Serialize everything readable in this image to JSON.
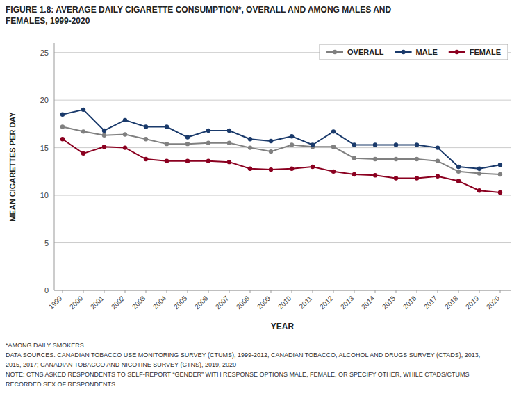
{
  "chart_data": {
    "type": "line",
    "title": "FIGURE 1.8: AVERAGE DAILY CIGARETTE CONSUMPTION*, OVERALL AND AMONG MALES AND",
    "subtitle": "FEMALES, 1999-2020",
    "x_label": "YEAR",
    "y_label": "MEAN CIGARETTES PER DAY",
    "x": [
      1999,
      2000,
      2001,
      2002,
      2003,
      2004,
      2005,
      2006,
      2007,
      2008,
      2009,
      2010,
      2011,
      2012,
      2013,
      2014,
      2015,
      2016,
      2017,
      2018,
      2019,
      2020
    ],
    "series": [
      {
        "name": "OVERALL",
        "color": "#808080",
        "marker": "circle",
        "line_style": "solid",
        "values": [
          17.2,
          16.7,
          16.3,
          16.4,
          15.9,
          15.4,
          15.4,
          15.5,
          15.5,
          15.0,
          14.6,
          15.3,
          15.1,
          15.1,
          13.9,
          13.8,
          13.8,
          13.8,
          13.6,
          12.5,
          12.3,
          12.2
        ]
      },
      {
        "name": "MALE",
        "color": "#1a3a6b",
        "marker": "circle",
        "line_style": "solid",
        "values": [
          18.5,
          19.0,
          16.8,
          17.9,
          17.2,
          17.2,
          16.1,
          16.8,
          16.8,
          15.9,
          15.7,
          16.2,
          15.3,
          16.7,
          15.3,
          15.3,
          15.3,
          15.3,
          15.0,
          13.0,
          12.8,
          13.2
        ]
      },
      {
        "name": "FEMALE",
        "color": "#8b0020",
        "marker": "circle",
        "line_style": "solid",
        "values": [
          15.9,
          14.4,
          15.1,
          15.0,
          13.8,
          13.6,
          13.6,
          13.6,
          13.5,
          12.8,
          12.7,
          12.8,
          13.0,
          12.5,
          12.2,
          12.1,
          11.8,
          11.8,
          12.0,
          11.5,
          10.5,
          10.3
        ]
      }
    ],
    "xlim": [
      1998.6,
      2020.5
    ],
    "xticks": [
      1999,
      2000,
      2001,
      2002,
      2003,
      2004,
      2005,
      2006,
      2007,
      2008,
      2009,
      2010,
      2011,
      2012,
      2013,
      2014,
      2015,
      2016,
      2017,
      2018,
      2019,
      2020
    ],
    "ylim": [
      0,
      26
    ],
    "yticks": [
      0,
      5,
      10,
      15,
      20,
      25
    ],
    "grid": true,
    "legend": "upper-right",
    "annotations": [
      "*AMONG DAILY SMOKERS",
      "DATA SOURCES: CANADIAN TOBACCO USE MONITORING SURVEY (CTUMS), 1999-2012; CANADIAN TOBACCO, ALCOHOL AND DRUGS SURVEY (CTADS), 2013,",
      "2015, 2017; CANADIAN TOBACCO AND NICOTINE SURVEY (CTNS), 2019, 2020",
      "NOTE: CTNS ASKED RESPONDENTS TO SELF-REPORT “GENDER” WITH RESPONSE OPTIONS MALE, FEMALE, OR SPECIFY OTHER, WHILE CTADS/CTUMS",
      "RECORDED SEX OF RESPONDENTS"
    ]
  }
}
